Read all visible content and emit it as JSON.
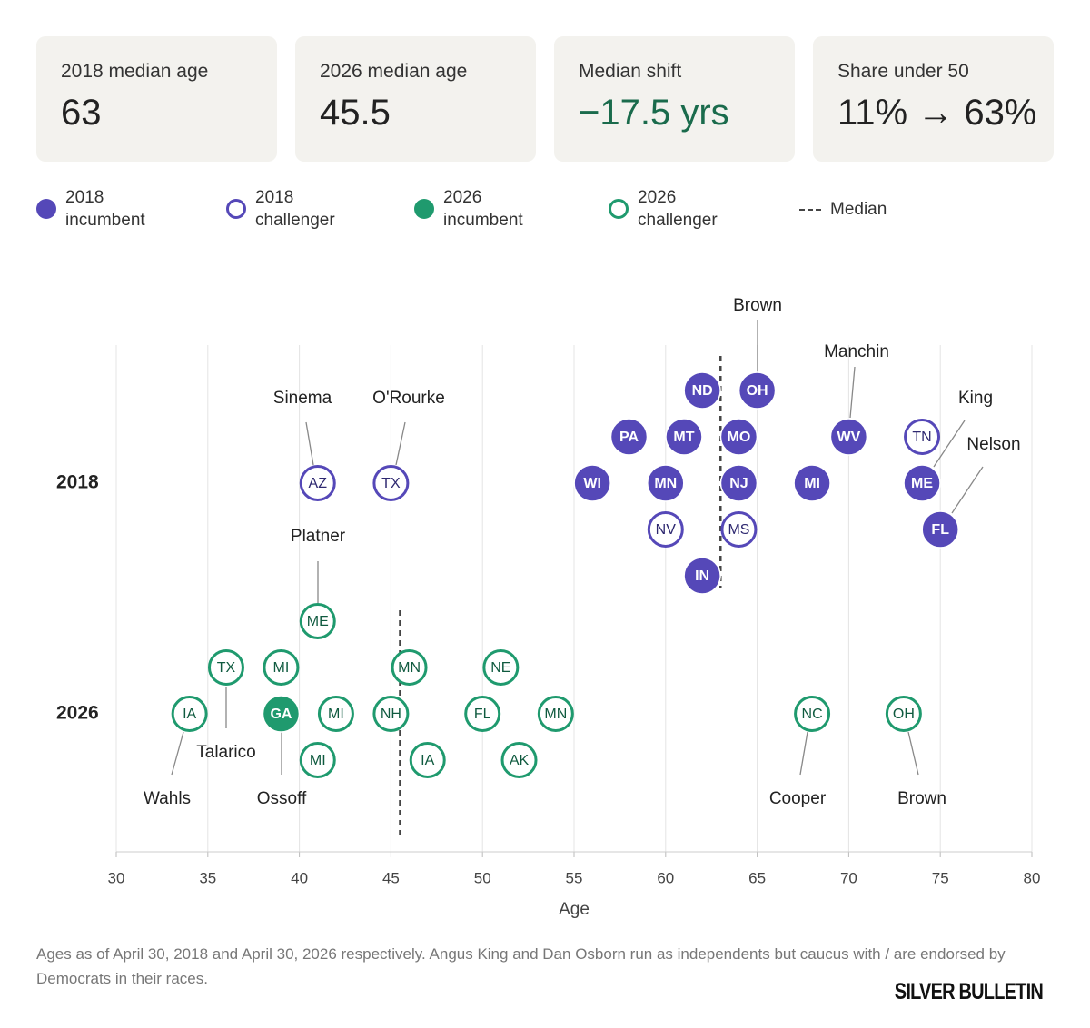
{
  "cards": [
    {
      "label": "2018 median age",
      "value": "63"
    },
    {
      "label": "2026 median age",
      "value": "45.5"
    },
    {
      "label": "Median shift",
      "value": "−17.5 yrs"
    },
    {
      "label": "Share under 50",
      "value": "11% → 63%"
    }
  ],
  "legend": {
    "inc2018": "2018\nincumbent",
    "ch2018": "2018\nchallenger",
    "inc2026": "2026\nincumbent",
    "ch2026": "2026\nchallenger",
    "median": "Median"
  },
  "colors": {
    "purple": "#5548b8",
    "green": "#1f9a6e",
    "purple_text": "#2e2870",
    "green_text": "#0f5a3f",
    "median": "#444444",
    "grid": "#e4e4e4"
  },
  "chart_data": {
    "type": "scatter",
    "xlabel": "Age",
    "xlim": [
      30,
      80
    ],
    "xticks": [
      30,
      35,
      40,
      45,
      50,
      55,
      60,
      65,
      70,
      75,
      80
    ],
    "rows": [
      "2018",
      "2026"
    ],
    "medians": {
      "2018": 63,
      "2026": 45.5
    },
    "points": [
      {
        "row": "2018",
        "state": "ND",
        "age": 62,
        "type": "incumbent",
        "level": 2
      },
      {
        "row": "2018",
        "state": "OH",
        "age": 65,
        "type": "incumbent",
        "level": 2,
        "name": "Brown"
      },
      {
        "row": "2018",
        "state": "PA",
        "age": 58,
        "type": "incumbent",
        "level": 1
      },
      {
        "row": "2018",
        "state": "MT",
        "age": 61,
        "type": "incumbent",
        "level": 1
      },
      {
        "row": "2018",
        "state": "MO",
        "age": 64,
        "type": "incumbent",
        "level": 1
      },
      {
        "row": "2018",
        "state": "WV",
        "age": 70,
        "type": "incumbent",
        "level": 1,
        "name": "Manchin"
      },
      {
        "row": "2018",
        "state": "TN",
        "age": 74,
        "type": "challenger",
        "level": 1
      },
      {
        "row": "2018",
        "state": "AZ",
        "age": 41,
        "type": "challenger",
        "level": 0,
        "name": "Sinema"
      },
      {
        "row": "2018",
        "state": "TX",
        "age": 45,
        "type": "challenger",
        "level": 0,
        "name": "O'Rourke"
      },
      {
        "row": "2018",
        "state": "WI",
        "age": 56,
        "type": "incumbent",
        "level": 0
      },
      {
        "row": "2018",
        "state": "MN",
        "age": 60,
        "type": "incumbent",
        "level": 0
      },
      {
        "row": "2018",
        "state": "NJ",
        "age": 64,
        "type": "incumbent",
        "level": 0
      },
      {
        "row": "2018",
        "state": "MI",
        "age": 68,
        "type": "incumbent",
        "level": 0
      },
      {
        "row": "2018",
        "state": "ME",
        "age": 74,
        "type": "incumbent",
        "level": 0,
        "name": "King"
      },
      {
        "row": "2018",
        "state": "NV",
        "age": 60,
        "type": "challenger",
        "level": -1
      },
      {
        "row": "2018",
        "state": "MS",
        "age": 64,
        "type": "challenger",
        "level": -1
      },
      {
        "row": "2018",
        "state": "FL",
        "age": 75,
        "type": "incumbent",
        "level": -1,
        "name": "Nelson"
      },
      {
        "row": "2018",
        "state": "IN",
        "age": 62,
        "type": "incumbent",
        "level": -2
      },
      {
        "row": "2026",
        "state": "ME",
        "age": 41,
        "type": "challenger",
        "level": 2,
        "name": "Platner"
      },
      {
        "row": "2026",
        "state": "TX",
        "age": 36,
        "type": "challenger",
        "level": 1,
        "name": "Talarico"
      },
      {
        "row": "2026",
        "state": "MI",
        "age": 39,
        "type": "challenger",
        "level": 1
      },
      {
        "row": "2026",
        "state": "MN",
        "age": 46,
        "type": "challenger",
        "level": 1
      },
      {
        "row": "2026",
        "state": "NE",
        "age": 51,
        "type": "challenger",
        "level": 1
      },
      {
        "row": "2026",
        "state": "IA",
        "age": 34,
        "type": "challenger",
        "level": 0,
        "name": "Wahls"
      },
      {
        "row": "2026",
        "state": "GA",
        "age": 39,
        "type": "incumbent",
        "level": 0,
        "name": "Ossoff"
      },
      {
        "row": "2026",
        "state": "MI",
        "age": 42,
        "type": "challenger",
        "level": 0
      },
      {
        "row": "2026",
        "state": "NH",
        "age": 45,
        "type": "challenger",
        "level": 0
      },
      {
        "row": "2026",
        "state": "FL",
        "age": 50,
        "type": "challenger",
        "level": 0
      },
      {
        "row": "2026",
        "state": "MN",
        "age": 54,
        "type": "challenger",
        "level": 0
      },
      {
        "row": "2026",
        "state": "NC",
        "age": 68,
        "type": "challenger",
        "level": 0,
        "name": "Cooper"
      },
      {
        "row": "2026",
        "state": "OH",
        "age": 73,
        "type": "challenger",
        "level": 0,
        "name": "Brown"
      },
      {
        "row": "2026",
        "state": "MI",
        "age": 41,
        "type": "challenger",
        "level": -1
      },
      {
        "row": "2026",
        "state": "IA",
        "age": 47,
        "type": "challenger",
        "level": -1
      },
      {
        "row": "2026",
        "state": "AK",
        "age": 52,
        "type": "challenger",
        "level": -1
      }
    ]
  },
  "footer": "Ages as of April 30, 2018 and April 30, 2026 respectively. Angus King and Dan Osborn run as independents but caucus with / are endorsed by Democrats in their races.",
  "logo": "SILVER BULLETIN"
}
